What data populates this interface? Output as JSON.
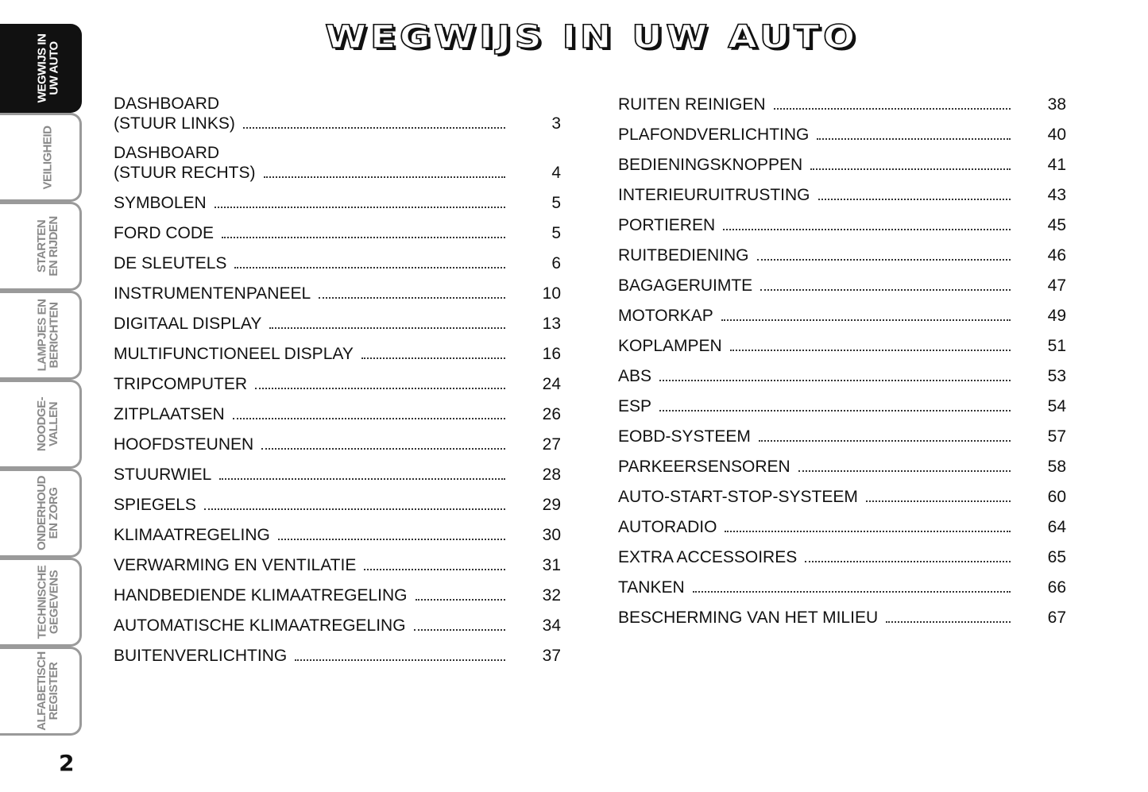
{
  "title": "WEGWIJS IN UW AUTO",
  "side_tabs": [
    {
      "label": "WEGWIJS IN\nUW AUTO",
      "active": true
    },
    {
      "label": "VEILIGHEID",
      "active": false
    },
    {
      "label": "STARTEN\nEN RIJDEN",
      "active": false
    },
    {
      "label": "LAMPJES EN\nBERICHTEN",
      "active": false
    },
    {
      "label": "NOODGE-\nVALLEN",
      "active": false
    },
    {
      "label": "ONDERHOUD\nEN ZORG",
      "active": false
    },
    {
      "label": "TECHNISCHE\nGEGEVENS",
      "active": false
    },
    {
      "label": "ALFABETISCH\nREGISTER",
      "active": false
    }
  ],
  "toc_left": [
    {
      "label": "DASHBOARD\n(STUUR LINKS)",
      "page": "3"
    },
    {
      "label": "DASHBOARD\n(STUUR RECHTS)",
      "page": "4"
    },
    {
      "label": "SYMBOLEN",
      "page": "5"
    },
    {
      "label": "FORD CODE",
      "page": "5"
    },
    {
      "label": "DE SLEUTELS",
      "page": "6"
    },
    {
      "label": "INSTRUMENTENPANEEL",
      "page": "10"
    },
    {
      "label": "DIGITAAL DISPLAY",
      "page": "13"
    },
    {
      "label": "MULTIFUNCTIONEEL DISPLAY",
      "page": "16"
    },
    {
      "label": "TRIPCOMPUTER",
      "page": "24"
    },
    {
      "label": "ZITPLAATSEN",
      "page": "26"
    },
    {
      "label": "HOOFDSTEUNEN",
      "page": "27"
    },
    {
      "label": "STUURWIEL",
      "page": "28"
    },
    {
      "label": "SPIEGELS",
      "page": "29"
    },
    {
      "label": "KLIMAATREGELING",
      "page": "30"
    },
    {
      "label": "VERWARMING EN VENTILATIE",
      "page": "31"
    },
    {
      "label": "HANDBEDIENDE KLIMAATREGELING",
      "page": "32"
    },
    {
      "label": "AUTOMATISCHE KLIMAATREGELING",
      "page": "34"
    },
    {
      "label": "BUITENVERLICHTING",
      "page": "37"
    }
  ],
  "toc_right": [
    {
      "label": "RUITEN REINIGEN",
      "page": "38"
    },
    {
      "label": "PLAFONDVERLICHTING",
      "page": "40"
    },
    {
      "label": "BEDIENINGSKNOPPEN",
      "page": "41"
    },
    {
      "label": "INTERIEURUITRUSTING",
      "page": "43"
    },
    {
      "label": "PORTIEREN",
      "page": "45"
    },
    {
      "label": "RUITBEDIENING",
      "page": "46"
    },
    {
      "label": "BAGAGERUIMTE",
      "page": "47"
    },
    {
      "label": "MOTORKAP",
      "page": "49"
    },
    {
      "label": "KOPLAMPEN",
      "page": "51"
    },
    {
      "label": "ABS",
      "page": "53"
    },
    {
      "label": "ESP",
      "page": "54"
    },
    {
      "label": "EOBD-SYSTEEM",
      "page": "57"
    },
    {
      "label": "PARKEERSENSOREN",
      "page": "58"
    },
    {
      "label": "AUTO-START-STOP-SYSTEEM",
      "page": "60"
    },
    {
      "label": "AUTORADIO",
      "page": "64"
    },
    {
      "label": "EXTRA ACCESSOIRES",
      "page": "65"
    },
    {
      "label": "TANKEN",
      "page": "66"
    },
    {
      "label": "BESCHERMING VAN HET MILIEU",
      "page": "67"
    }
  ],
  "page_number": "2"
}
